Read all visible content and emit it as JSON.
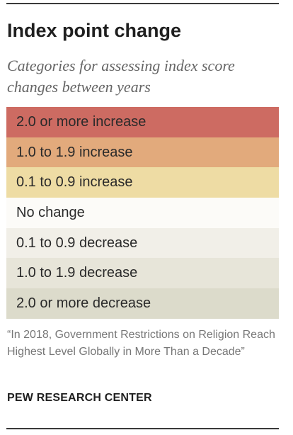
{
  "title": "Index point change",
  "subtitle": "Categories for assessing index score changes between years",
  "legend": [
    {
      "label": "2.0 or more increase",
      "color": "#cd6b62"
    },
    {
      "label": "1.0 to 1.9 increase",
      "color": "#e2aa7c"
    },
    {
      "label": "0.1 to 0.9 increase",
      "color": "#eedca4"
    },
    {
      "label": "No change",
      "color": "#fcfbf8"
    },
    {
      "label": "0.1 to 0.9 decrease",
      "color": "#f1efe8"
    },
    {
      "label": "1.0 to 1.9 decrease",
      "color": "#e7e5d9"
    },
    {
      "label": "2.0 or more decrease",
      "color": "#dcdbcb"
    }
  ],
  "source": "“In 2018, Government Restrictions on Religion Reach Highest Level Globally in More Than a Decade”",
  "organization": "PEW RESEARCH CENTER"
}
